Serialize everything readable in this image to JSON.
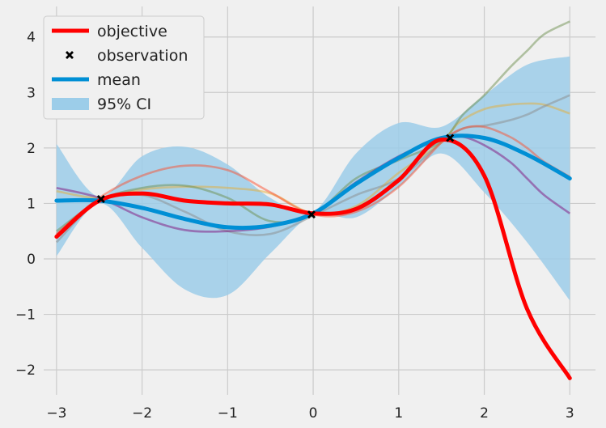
{
  "chart_data": {
    "type": "line",
    "title": "",
    "xlabel": "",
    "ylabel": "",
    "xlim": [
      -3.15,
      3.3
    ],
    "ylim": [
      -2.45,
      4.55
    ],
    "xticks": [
      -3,
      -2,
      -1,
      0,
      1,
      2,
      3
    ],
    "yticks": [
      -2,
      -1,
      0,
      1,
      2,
      3,
      4
    ],
    "xtick_labels": [
      "−3",
      "−2",
      "−1",
      "0",
      "1",
      "2",
      "3"
    ],
    "ytick_labels": [
      "−2",
      "−1",
      "0",
      "1",
      "2",
      "3",
      "4"
    ],
    "grid": true,
    "legend_position": "top-left",
    "legend": [
      "objective",
      "observation",
      "mean",
      "95% CI"
    ],
    "x": [
      -3.0,
      -2.5,
      -2.0,
      -1.5,
      -1.0,
      -0.5,
      0.0,
      0.5,
      1.0,
      1.5,
      2.0,
      2.5,
      3.0
    ],
    "series": [
      {
        "name": "objective",
        "color": "#ff0000",
        "values": [
          0.4,
          1.05,
          1.18,
          1.05,
          1.0,
          0.98,
          0.82,
          0.9,
          1.42,
          2.15,
          1.5,
          -0.9,
          -2.15
        ]
      },
      {
        "name": "mean",
        "color": "#008fd5",
        "values": [
          1.05,
          1.05,
          0.92,
          0.72,
          0.57,
          0.6,
          0.82,
          1.35,
          1.82,
          2.18,
          2.18,
          1.88,
          1.45
        ]
      }
    ],
    "confidence_interval": {
      "name": "95% CI",
      "color": "#9ccde9",
      "lower": [
        0.05,
        1.0,
        0.2,
        -0.55,
        -0.65,
        0.1,
        0.8,
        0.75,
        1.3,
        1.9,
        1.2,
        0.3,
        -0.75
      ],
      "upper": [
        2.07,
        1.12,
        1.85,
        2.02,
        1.7,
        1.1,
        0.85,
        1.9,
        2.45,
        2.38,
        2.95,
        3.5,
        3.65
      ]
    },
    "observations": {
      "name": "observation",
      "x": [
        -2.48,
        -0.02,
        1.6
      ],
      "y": [
        1.08,
        0.8,
        2.18
      ]
    },
    "samples": [
      {
        "color": "#e5ae38",
        "x": [
          -3.0,
          -2.5,
          -2.0,
          -1.5,
          -1.0,
          -0.5,
          0.0,
          0.5,
          1.0,
          1.5,
          1.7,
          2.0,
          2.3,
          2.5,
          2.7,
          3.0
        ],
        "y": [
          1.22,
          1.1,
          1.25,
          1.3,
          1.28,
          1.18,
          0.82,
          0.95,
          1.55,
          2.1,
          2.45,
          2.7,
          2.78,
          2.8,
          2.78,
          2.62
        ]
      },
      {
        "color": "#6d904f",
        "x": [
          -3.0,
          -2.5,
          -2.0,
          -1.5,
          -1.0,
          -0.5,
          0.0,
          0.5,
          1.0,
          1.5,
          1.75,
          2.0,
          2.3,
          2.5,
          2.7,
          3.0
        ],
        "y": [
          0.5,
          1.05,
          1.28,
          1.32,
          1.1,
          0.68,
          0.8,
          1.45,
          1.78,
          2.12,
          2.6,
          2.95,
          3.45,
          3.75,
          4.05,
          4.28
        ]
      },
      {
        "color": "#8b8b8b",
        "x": [
          -3.0,
          -2.5,
          -2.0,
          -1.5,
          -1.0,
          -0.5,
          0.0,
          0.5,
          1.0,
          1.5,
          1.75,
          2.0,
          2.3,
          2.5,
          2.7,
          3.0
        ],
        "y": [
          0.3,
          1.05,
          1.15,
          0.85,
          0.5,
          0.45,
          0.78,
          1.15,
          1.45,
          2.1,
          2.35,
          2.4,
          2.5,
          2.6,
          2.75,
          2.95
        ]
      },
      {
        "color": "#fc4f30",
        "x": [
          -3.0,
          -2.5,
          -2.0,
          -1.5,
          -1.0,
          -0.5,
          0.0,
          0.5,
          1.0,
          1.5,
          1.75,
          2.0,
          2.3,
          2.5,
          2.7,
          3.0
        ],
        "y": [
          0.45,
          1.1,
          1.5,
          1.68,
          1.6,
          1.2,
          0.8,
          0.85,
          1.3,
          2.1,
          2.35,
          2.38,
          2.2,
          2.0,
          1.75,
          1.48
        ]
      },
      {
        "color": "#810f7c",
        "x": [
          -3.0,
          -2.5,
          -2.0,
          -1.5,
          -1.0,
          -0.5,
          0.0,
          0.5,
          1.0,
          1.5,
          1.75,
          2.0,
          2.3,
          2.5,
          2.7,
          3.0
        ],
        "y": [
          1.28,
          1.1,
          0.75,
          0.52,
          0.5,
          0.58,
          0.82,
          1.38,
          1.85,
          2.18,
          2.2,
          2.05,
          1.75,
          1.45,
          1.15,
          0.82
        ]
      }
    ]
  }
}
